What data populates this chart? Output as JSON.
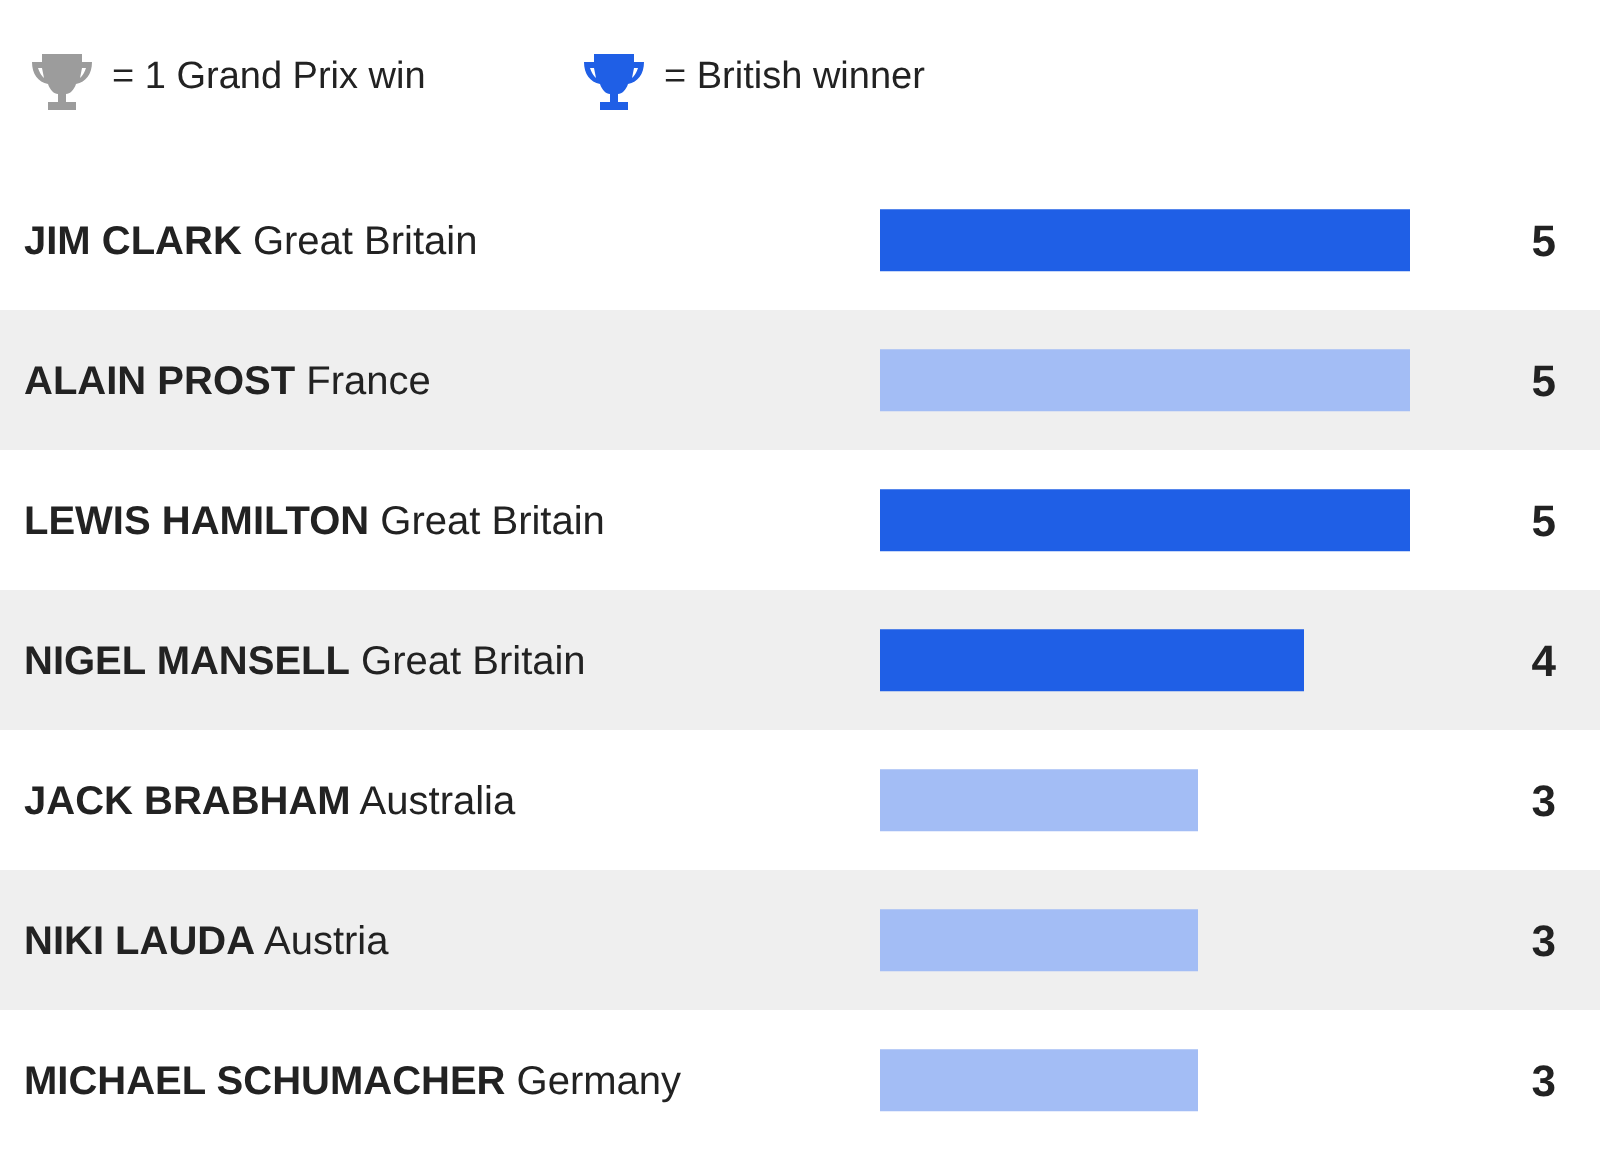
{
  "chart_data": {
    "type": "bar",
    "orientation": "horizontal",
    "categories": [
      "JIM CLARK Great Britain",
      "ALAIN PROST France",
      "LEWIS HAMILTON Great Britain",
      "NIGEL MANSELL Great Britain",
      "JACK BRABHAM Australia",
      "NIKI LAUDA  Austria",
      "MICHAEL SCHUMACHER Germany"
    ],
    "values": [
      5,
      5,
      5,
      4,
      3,
      3,
      3
    ],
    "colors": [
      "#1f5fe6",
      "#a3bdf5",
      "#1f5fe6",
      "#1f5fe6",
      "#a3bdf5",
      "#a3bdf5",
      "#a3bdf5"
    ],
    "data_labels": true,
    "annotations": [
      "= 1 Grand Prix win",
      "= British winner"
    ]
  }
}
